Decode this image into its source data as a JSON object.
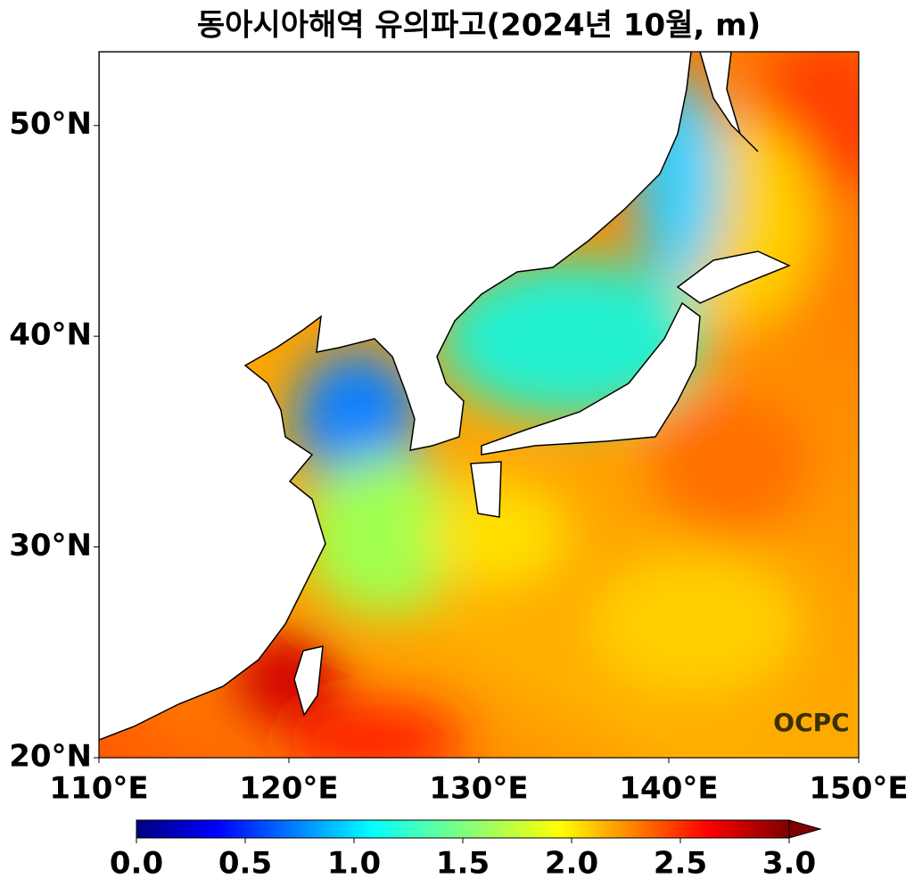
{
  "chart_data": {
    "type": "map",
    "title": "동아시아해역 유의파고(2024년 10월, m)",
    "xlim": [
      110,
      150
    ],
    "ylim": [
      20,
      53.5
    ],
    "xticks": [
      {
        "value": 110,
        "label": "110°E"
      },
      {
        "value": 120,
        "label": "120°E"
      },
      {
        "value": 130,
        "label": "130°E"
      },
      {
        "value": 140,
        "label": "140°E"
      },
      {
        "value": 150,
        "label": "150°E"
      }
    ],
    "yticks": [
      {
        "value": 20,
        "label": "20°N"
      },
      {
        "value": 30,
        "label": "30°N"
      },
      {
        "value": 40,
        "label": "40°N"
      },
      {
        "value": 50,
        "label": "50°N"
      }
    ],
    "colorbar": {
      "colormap": "jet",
      "lim": [
        0,
        3
      ],
      "extend": "max",
      "ticks": [
        {
          "value": 0,
          "label": "0.0"
        },
        0.5,
        {
          "value": 1,
          "label": "1.0"
        },
        1.5,
        {
          "value": 2,
          "label": "2.0"
        },
        2.5,
        {
          "value": 3,
          "label": "3.0"
        }
      ]
    },
    "logo": "OCPC"
  }
}
